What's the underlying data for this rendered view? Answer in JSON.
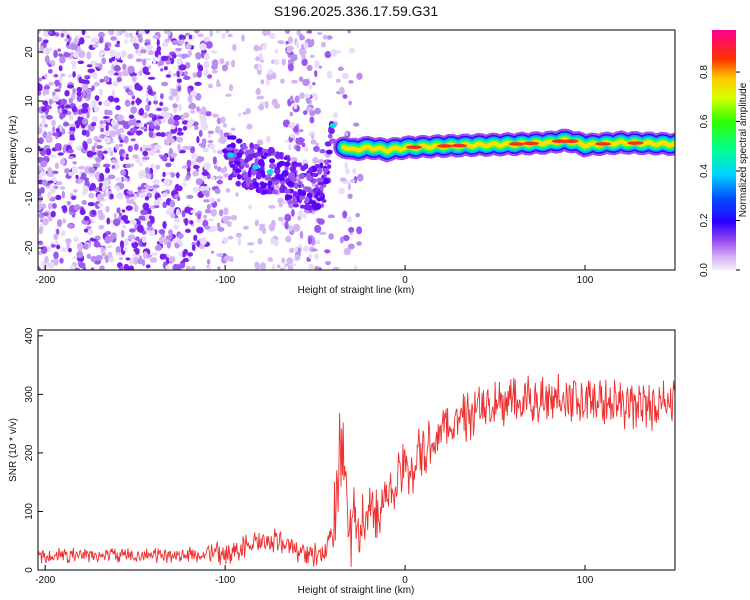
{
  "title": "S196.2025.336.17.59.G31",
  "chart_data": [
    {
      "type": "heatmap",
      "xlabel": "Height of straight line (km)",
      "ylabel": "Frequency (Hz)",
      "xlim": [
        -204,
        150
      ],
      "ylim": [
        -24.5,
        24.5
      ],
      "xticks": [
        -200,
        -100,
        0,
        100
      ],
      "yticks": [
        -20,
        -10,
        0,
        10,
        20
      ],
      "colorbar": {
        "label": "Normalized spectral amplitude",
        "ticks": [
          0.0,
          0.2,
          0.4,
          0.6,
          0.8
        ],
        "range": [
          0,
          0.97
        ]
      },
      "ridge": {
        "description": "dominant frequency ridge",
        "x": [
          -100,
          -90,
          -80,
          -70,
          -60,
          -50,
          -45,
          -40,
          -35,
          -30,
          -20,
          -10,
          0,
          20,
          40,
          60,
          80,
          90,
          100,
          120,
          150
        ],
        "freq": [
          -1,
          -3,
          -4,
          -5,
          -7,
          -8,
          -7,
          5,
          1,
          0,
          0.5,
          0,
          0.5,
          0.8,
          1,
          1.2,
          1.5,
          2,
          1,
          1.5,
          1.2
        ]
      }
    },
    {
      "type": "line",
      "xlabel": "Height of straight line (km)",
      "ylabel": "SNR (10 * v/v)",
      "xlim": [
        -204,
        150
      ],
      "ylim": [
        0,
        410
      ],
      "xticks": [
        -200,
        -100,
        0,
        100
      ],
      "yticks": [
        0,
        100,
        200,
        300,
        400
      ],
      "series": [
        {
          "name": "SNR",
          "color": "#ee3030",
          "x": [
            -204,
            -180,
            -160,
            -140,
            -120,
            -100,
            -90,
            -80,
            -70,
            -60,
            -50,
            -45,
            -40,
            -35,
            -32,
            -30,
            -25,
            -20,
            -15,
            -10,
            -5,
            0,
            10,
            20,
            30,
            40,
            50,
            60,
            70,
            80,
            90,
            100,
            110,
            120,
            130,
            140,
            150
          ],
          "y": [
            25,
            25,
            25,
            25,
            26,
            28,
            40,
            45,
            50,
            35,
            25,
            20,
            80,
            240,
            120,
            60,
            70,
            90,
            110,
            130,
            150,
            170,
            200,
            235,
            255,
            270,
            280,
            285,
            290,
            295,
            300,
            290,
            285,
            280,
            280,
            280,
            285
          ]
        }
      ]
    }
  ]
}
